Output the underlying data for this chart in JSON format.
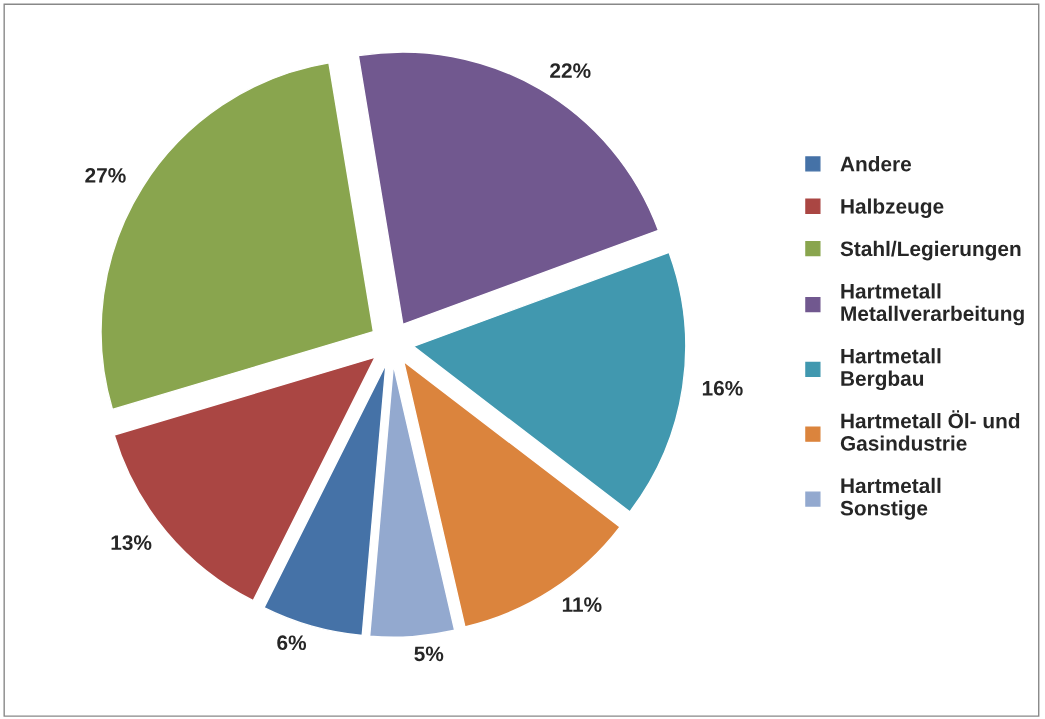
{
  "chart_data": {
    "type": "pie",
    "categories": [
      "Andere",
      "Halbzeuge",
      "Stahl/Legierungen",
      "Hartmetall\nMetallverarbeitung",
      "Hartmetall\nBergbau",
      "Hartmetall Öl- und\nGasindustrie",
      "Hartmetall\nSonstige"
    ],
    "values": [
      6,
      13,
      27,
      22,
      16,
      11,
      5
    ],
    "colors": [
      "#4572a7",
      "#aa4643",
      "#89a54e",
      "#71588f",
      "#4198af",
      "#db843d",
      "#93a9cf"
    ],
    "value_labels": [
      "6%",
      "13%",
      "27%",
      "22%",
      "16%",
      "11%",
      "5%"
    ],
    "legend": "right"
  }
}
